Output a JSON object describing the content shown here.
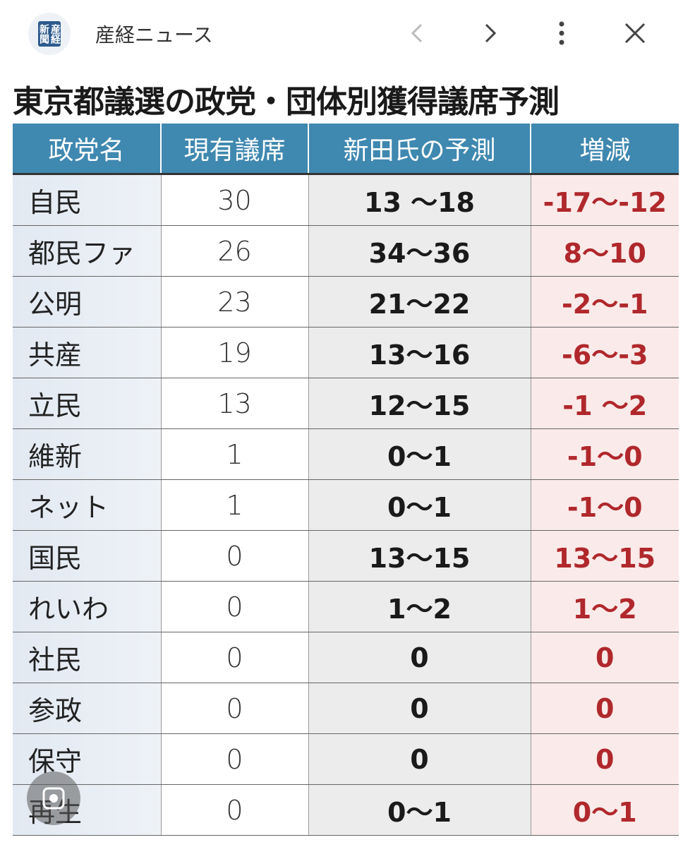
{
  "header": {
    "logo": "産経新聞",
    "source": "産経ニュース"
  },
  "title": "東京都議選の政党・団体別獲得議席予測",
  "table": {
    "columns": [
      "政党名",
      "現有議席",
      "新田氏の予測",
      "増減"
    ],
    "rows": [
      [
        "自民",
        30,
        "13 〜18",
        "-17〜-12"
      ],
      [
        "都民ファ",
        26,
        "34〜36",
        "8〜10"
      ],
      [
        "公明",
        23,
        "21〜22",
        "-2〜-1"
      ],
      [
        "共産",
        19,
        "13〜16",
        "-6〜-3"
      ],
      [
        "立民",
        13,
        "12〜15",
        "-1 〜2"
      ],
      [
        "維新",
        1,
        "0〜1",
        "-1〜0"
      ],
      [
        "ネット",
        1,
        "0〜1",
        "-1〜0"
      ],
      [
        "国民",
        0,
        "13〜15",
        "13〜15"
      ],
      [
        "れいわ",
        0,
        "1〜2",
        "1〜2"
      ],
      [
        "社民",
        0,
        "0",
        "0"
      ],
      [
        "参政",
        0,
        "0",
        "0"
      ],
      [
        "保守",
        0,
        "0",
        "0"
      ],
      [
        "再生",
        0,
        "0〜1",
        "0〜1"
      ]
    ]
  }
}
